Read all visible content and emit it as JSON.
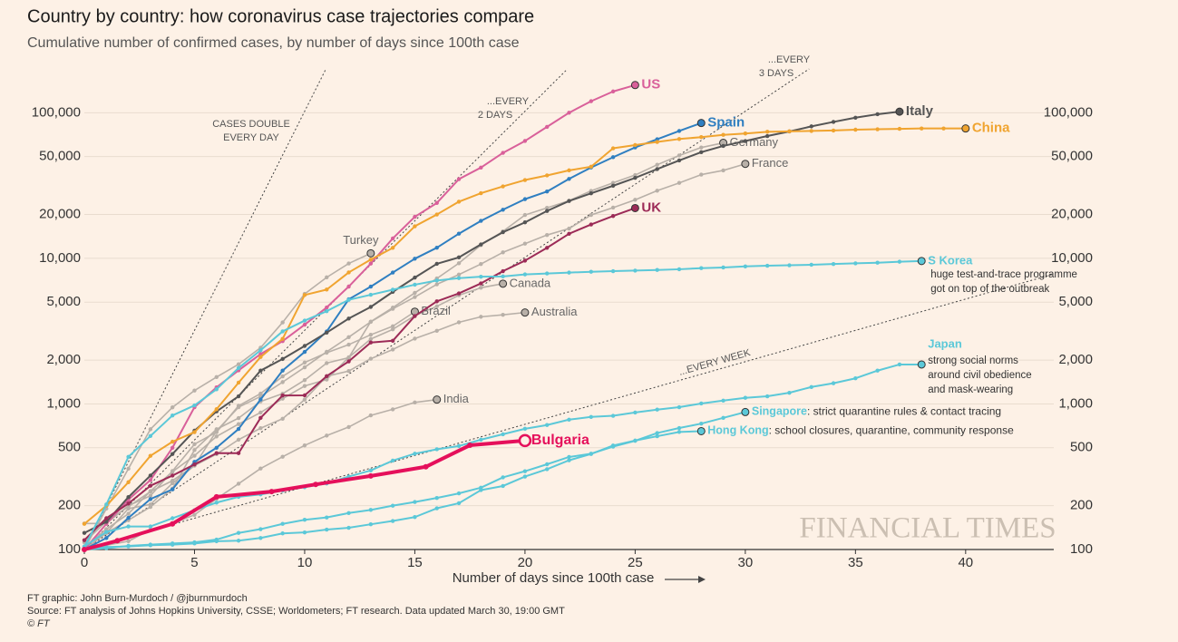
{
  "chart_data": {
    "type": "line",
    "title": "Country by country: how coronavirus case trajectories compare",
    "subtitle": "Cumulative number of confirmed cases, by number of days since 100th case",
    "x_label": "Number of days since 100th case",
    "yscale": "log",
    "xlim": [
      0,
      44
    ],
    "ylim": [
      100,
      200000
    ],
    "xticks": [
      0,
      5,
      10,
      15,
      20,
      25,
      30,
      35,
      40
    ],
    "yticks": [
      100,
      200,
      500,
      {
        "value": 1000,
        "label": "1,000"
      },
      {
        "value": 2000,
        "label": "2,000"
      },
      {
        "value": 5000,
        "label": "5,000"
      },
      {
        "value": 10000,
        "label": "10,000"
      },
      {
        "value": 20000,
        "label": "20,000"
      },
      {
        "value": 50000,
        "label": "50,000"
      },
      {
        "value": 100000,
        "label": "100,000"
      }
    ],
    "grid": true,
    "reference_lines": [
      {
        "label": [
          "CASES DOUBLE",
          "EVERY DAY"
        ],
        "doubling_days": 1
      },
      {
        "label": [
          "...EVERY",
          "2 DAYS"
        ],
        "doubling_days": 2
      },
      {
        "label": [
          "...EVERY",
          "3 DAYS"
        ],
        "doubling_days": 3
      },
      {
        "label": [
          "...EVERY WEEK"
        ],
        "doubling_days": 7
      }
    ],
    "series": [
      {
        "name": "US",
        "color": "#d9609a",
        "highlight": true,
        "values": [
          100,
          150,
          220,
          300,
          500,
          950,
          1300,
          1700,
          2200,
          2700,
          3500,
          4600,
          6400,
          9200,
          13700,
          19300,
          24000,
          35000,
          42000,
          53000,
          64000,
          80000,
          100000,
          120000,
          140000,
          155000
        ]
      },
      {
        "name": "Spain",
        "color": "#2f7fc1",
        "highlight": true,
        "values": [
          100,
          120,
          165,
          222,
          259,
          400,
          500,
          673,
          1073,
          1695,
          2277,
          3146,
          5232,
          6391,
          7988,
          9942,
          11826,
          14769,
          18077,
          21571,
          25496,
          28768,
          35136,
          42058,
          49515,
          57786,
          65719,
          75000,
          85000
        ]
      },
      {
        "name": "Italy",
        "color": "#555555",
        "highlight": true,
        "values": [
          130,
          155,
          229,
          322,
          453,
          655,
          888,
          1128,
          1694,
          2036,
          2502,
          3089,
          3858,
          4636,
          5883,
          7375,
          9172,
          10149,
          12462,
          15113,
          17660,
          21157,
          24747,
          27980,
          31506,
          35713,
          41035,
          47021,
          53578,
          59138,
          63927,
          69176,
          74386,
          80589,
          86498,
          92472,
          97689,
          101739
        ]
      },
      {
        "name": "China",
        "color": "#f0a430",
        "highlight": true,
        "values": [
          150,
          200,
          290,
          440,
          550,
          640,
          920,
          1400,
          2100,
          2800,
          5600,
          6100,
          8000,
          9800,
          11800,
          16600,
          20000,
          24500,
          28000,
          31200,
          34500,
          37100,
          40200,
          42600,
          57000,
          60000,
          63000,
          66000,
          68000,
          70500,
          72000,
          74000,
          74500,
          75000,
          75500,
          76500,
          77000,
          77500,
          78000,
          78000,
          78000
        ]
      },
      {
        "name": "Germany",
        "color": "#b8b0a8",
        "highlight": false,
        "values": [
          100,
          130,
          159,
          196,
          262,
          482,
          670,
          799,
          1040,
          1176,
          1457,
          1908,
          2078,
          3675,
          4585,
          5795,
          7272,
          9257,
          12327,
          15320,
          19848,
          22213,
          24873,
          29056,
          32986,
          37323,
          43938,
          50871,
          57695,
          62095
        ]
      },
      {
        "name": "France",
        "color": "#b8b0a8",
        "highlight": false,
        "values": [
          100,
          130,
          191,
          204,
          285,
          377,
          653,
          949,
          1126,
          1412,
          1784,
          2281,
          2876,
          3661,
          4499,
          5423,
          6633,
          7730,
          9134,
          10995,
          12612,
          14459,
          16018,
          19856,
          22304,
          25233,
          29155,
          32964,
          37575,
          40174,
          44550
        ]
      },
      {
        "name": "UK",
        "color": "#9c2b57",
        "highlight": true,
        "values": [
          116,
          164,
          207,
          274,
          322,
          384,
          459,
          459,
          802,
          1144,
          1145,
          1551,
          1960,
          2642,
          2716,
          4014,
          5067,
          5745,
          6726,
          8164,
          9640,
          11812,
          14745,
          17089,
          19522,
          22141
        ]
      },
      {
        "name": "Turkey",
        "color": "#b8b0a8",
        "highlight": false,
        "values": [
          100,
          191,
          359,
          670,
          947,
          1236,
          1529,
          1872,
          2433,
          3629,
          5698,
          7402,
          9217,
          10827
        ]
      },
      {
        "name": "S Korea",
        "color": "#5bc8d8",
        "highlight": true,
        "note": [
          "huge test-and-trace programme",
          "got on top of the outbreak"
        ],
        "values": [
          104,
          204,
          433,
          602,
          833,
          977,
          1261,
          1766,
          2337,
          3150,
          3736,
          4335,
          5186,
          5621,
          6088,
          6593,
          7041,
          7314,
          7478,
          7513,
          7755,
          7869,
          7979,
          8086,
          8162,
          8236,
          8320,
          8413,
          8565,
          8652,
          8799,
          8897,
          8961,
          9037,
          9137,
          9241,
          9332,
          9478,
          9583
        ]
      },
      {
        "name": "Canada",
        "color": "#b8b0a8",
        "highlight": false,
        "values": [
          103,
          138,
          176,
          252,
          342,
          441,
          598,
          727,
          873,
          1087,
          1328,
          1470,
          2088,
          2790,
          3251,
          4042,
          4682,
          5576,
          6280,
          6700
        ]
      },
      {
        "name": "Brazil",
        "color": "#b8b0a8",
        "highlight": false,
        "values": [
          151,
          151,
          200,
          234,
          346,
          529,
          640,
          970,
          1178,
          1546,
          1924,
          2247,
          2554,
          2985,
          3417,
          4300
        ]
      },
      {
        "name": "Australia",
        "color": "#b8b0a8",
        "highlight": false,
        "values": [
          112,
          156,
          197,
          250,
          297,
          377,
          452,
          568,
          681,
          791,
          1071,
          1549,
          1682,
          2044,
          2364,
          2810,
          3179,
          3635,
          3966,
          4093,
          4245
        ]
      },
      {
        "name": "India",
        "color": "#b8b0a8",
        "highlight": false,
        "values": [
          100,
          107,
          114,
          137,
          151,
          173,
          223,
          283,
          360,
          434,
          519,
          606,
          694,
          834,
          918,
          1024,
          1071
        ]
      },
      {
        "name": "Japan",
        "color": "#5bc8d8",
        "highlight": true,
        "note": [
          "strong social norms",
          "around civil obedience",
          "and mask-wearing"
        ],
        "values": [
          105,
          132,
          144,
          144,
          164,
          186,
          210,
          230,
          239,
          254,
          268,
          284,
          317,
          349,
          408,
          455,
          488,
          514,
          568,
          619,
          675,
          716,
          780,
          814,
          829,
          873,
          914,
          950,
          1007,
          1054,
          1101,
          1128,
          1193,
          1307,
          1387,
          1499,
          1693,
          1866,
          1866
        ]
      },
      {
        "name": "Singapore",
        "color": "#5bc8d8",
        "highlight": true,
        "note": [
          ": strict quarantine rules & contact tracing"
        ],
        "values": [
          100,
          102,
          106,
          108,
          110,
          112,
          117,
          130,
          138,
          150,
          160,
          166,
          178,
          187,
          200,
          212,
          226,
          243,
          266,
          313,
          345,
          385,
          432,
          455,
          509,
          558,
          631,
          683,
          732,
          802,
          879
        ]
      },
      {
        "name": "Hong Kong",
        "color": "#5bc8d8",
        "highlight": true,
        "note": [
          ": school closures, quarantine, community response"
        ],
        "values": [
          100,
          104,
          105,
          107,
          108,
          110,
          114,
          115,
          120,
          129,
          131,
          137,
          141,
          149,
          157,
          167,
          192,
          208,
          256,
          273,
          317,
          356,
          410,
          453,
          518,
          560,
          600,
          642,
          650
        ]
      },
      {
        "name": "Bulgaria",
        "color": "#e5105b",
        "highlight": true,
        "x": [
          0,
          1.5,
          4,
          6,
          8.5,
          10.5,
          13,
          15.5,
          17.5,
          20
        ],
        "values": [
          100,
          115,
          150,
          230,
          250,
          280,
          320,
          370,
          520,
          560
        ]
      }
    ],
    "watermark": "FINANCIAL TIMES"
  },
  "footer": [
    "FT graphic: John Burn-Murdoch / @jburnmurdoch",
    "Source: FT analysis of Johns Hopkins University, CSSE; Worldometers; FT research. Data updated March 30, 19:00 GMT",
    "© FT"
  ]
}
